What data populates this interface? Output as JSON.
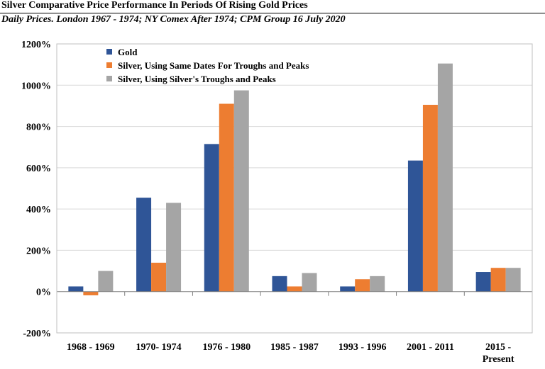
{
  "header": {
    "title": "Silver Comparative Price Performance In Periods Of Rising Gold Prices",
    "subtitle": "Daily Prices. London 1967 - 1974; NY Comex After 1974; CPM Group 16 July 2020"
  },
  "chart_data": {
    "type": "bar",
    "title": "Silver Comparative Price Performance In Periods Of Rising Gold Prices",
    "subtitle": "Daily Prices. London 1967 - 1974; NY Comex After 1974; CPM Group 16 July 2020",
    "xlabel": "",
    "ylabel": "",
    "categories": [
      [
        "1968 - 1969"
      ],
      [
        "1970- 1974"
      ],
      [
        "1976 - 1980"
      ],
      [
        "1985 - 1987"
      ],
      [
        "1993 - 1996"
      ],
      [
        "2001 - 2011"
      ],
      [
        "2015 -",
        "Present"
      ]
    ],
    "series": [
      {
        "name": "Gold",
        "color": "#2F5597",
        "values": [
          25,
          455,
          715,
          75,
          25,
          635,
          95
        ]
      },
      {
        "name": "Silver, Using Same Dates For Troughs and Peaks",
        "color": "#ED7D31",
        "values": [
          -18,
          140,
          910,
          25,
          60,
          905,
          115
        ]
      },
      {
        "name": "Silver, Using Silver's Troughs and Peaks",
        "color": "#A5A5A5",
        "values": [
          100,
          430,
          975,
          90,
          75,
          1105,
          115
        ]
      }
    ],
    "ylim": [
      -200,
      1200
    ],
    "yticks": [
      -200,
      0,
      200,
      400,
      600,
      800,
      1000,
      1200
    ],
    "ytick_suffix": "%",
    "grid": true,
    "legend_position": "top-left"
  }
}
